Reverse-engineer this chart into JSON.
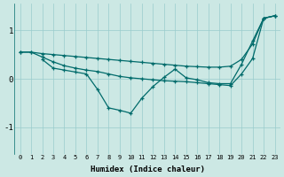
{
  "xlabel": "Humidex (Indice chaleur)",
  "bg_color": "#cce8e4",
  "line_color": "#006b6b",
  "grid_color": "#99cccc",
  "xlim": [
    -0.5,
    23.5
  ],
  "ylim": [
    -1.55,
    1.55
  ],
  "xticks": [
    0,
    1,
    2,
    3,
    4,
    5,
    6,
    7,
    8,
    9,
    10,
    11,
    12,
    13,
    14,
    15,
    16,
    17,
    18,
    19,
    20,
    21,
    22,
    23
  ],
  "yticks": [
    -1,
    0,
    1
  ],
  "line1_x": [
    0,
    1,
    2,
    3,
    4,
    5,
    6,
    7,
    8,
    9,
    10,
    11,
    12,
    13,
    14,
    15,
    16,
    17,
    18,
    19,
    20,
    21,
    22,
    23
  ],
  "line1_y": [
    0.55,
    0.55,
    0.52,
    0.5,
    0.48,
    0.46,
    0.44,
    0.42,
    0.4,
    0.38,
    0.36,
    0.34,
    0.32,
    0.3,
    0.28,
    0.26,
    0.25,
    0.24,
    0.24,
    0.26,
    0.4,
    0.72,
    1.25,
    1.3
  ],
  "line2_x": [
    0,
    1,
    2,
    3,
    4,
    5,
    6,
    7,
    8,
    9,
    10,
    11,
    12,
    13,
    14,
    15,
    16,
    17,
    18,
    19,
    20,
    21,
    22,
    23
  ],
  "line2_y": [
    0.55,
    0.55,
    0.45,
    0.35,
    0.27,
    0.22,
    0.18,
    0.15,
    0.1,
    0.05,
    0.02,
    0.0,
    -0.02,
    -0.04,
    -0.05,
    -0.06,
    -0.08,
    -0.1,
    -0.12,
    -0.14,
    0.1,
    0.42,
    1.25,
    1.3
  ],
  "line3_x": [
    2,
    3,
    4,
    5,
    6,
    7,
    8,
    9,
    10,
    11,
    12,
    13,
    14,
    15,
    16,
    17,
    18,
    19,
    20,
    21,
    22,
    23
  ],
  "line3_y": [
    0.4,
    0.22,
    0.18,
    0.14,
    0.1,
    -0.22,
    -0.6,
    -0.65,
    -0.71,
    -0.4,
    -0.16,
    0.03,
    0.2,
    0.02,
    -0.02,
    -0.08,
    -0.1,
    -0.1,
    0.3,
    0.78,
    1.25,
    1.3
  ],
  "marker": "+"
}
